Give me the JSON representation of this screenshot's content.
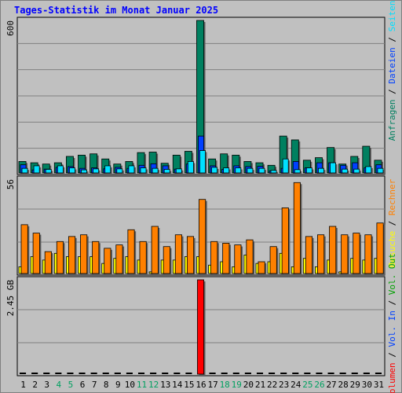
{
  "title": "Tages-Statistik im Monat Januar 2025",
  "colors": {
    "anfragen": "#008060",
    "dateien": "#0040ff",
    "seiten": "#00e0ff",
    "besuche": "#ffff00",
    "rechner": "#ff8000",
    "volumen": "#ff0000",
    "vol_in": "#0040ff",
    "vol_out": "#00a000"
  },
  "right_labels": {
    "top": [
      {
        "text": "Anfragen",
        "color": "#008060"
      },
      {
        "text": "Dateien",
        "color": "#0040ff"
      },
      {
        "text": "Seiten",
        "color": "#00e0ff"
      }
    ],
    "middle": [
      {
        "text": "Besuche",
        "color": "#ffff00"
      },
      {
        "text": "Rechner",
        "color": "#ff8000"
      }
    ],
    "bottom": [
      {
        "text": "Volumen",
        "color": "#ff0000"
      },
      {
        "text": "Vol. In",
        "color": "#0040ff"
      },
      {
        "text": "Vol. Out",
        "color": "#00a000"
      }
    ]
  },
  "chart_data": {
    "type": "bar",
    "categories": [
      "1",
      "2",
      "3",
      "4",
      "5",
      "6",
      "7",
      "8",
      "9",
      "10",
      "11",
      "12",
      "13",
      "14",
      "15",
      "16",
      "17",
      "18",
      "19",
      "20",
      "21",
      "22",
      "23",
      "24",
      "25",
      "26",
      "27",
      "28",
      "29",
      "30",
      "31"
    ],
    "weekend_days": [
      "4",
      "5",
      "11",
      "12",
      "18",
      "19",
      "25",
      "26"
    ],
    "panels": [
      {
        "max_label": "600",
        "ylim": [
          0,
          600
        ],
        "series": [
          {
            "name": "Anfragen",
            "values": [
              45,
              40,
              35,
              40,
              65,
              70,
              75,
              55,
              35,
              45,
              80,
              82,
              38,
              70,
              85,
              600,
              55,
              75,
              70,
              45,
              40,
              30,
              145,
              130,
              50,
              60,
              100,
              35,
              65,
              105,
              50
            ]
          },
          {
            "name": "Dateien",
            "values": [
              32,
              12,
              15,
              22,
              25,
              18,
              20,
              16,
              22,
              18,
              30,
              36,
              28,
              15,
              35,
              145,
              28,
              14,
              28,
              25,
              26,
              8,
              18,
              45,
              20,
              40,
              40,
              30,
              40,
              20,
              32
            ]
          },
          {
            "name": "Seiten",
            "values": [
              18,
              28,
              14,
              28,
              20,
              12,
              16,
              28,
              16,
              28,
              20,
              18,
              14,
              16,
              45,
              88,
              22,
              20,
              20,
              18,
              18,
              10,
              55,
              13,
              20,
              18,
              40,
              15,
              15,
              25,
              18
            ]
          }
        ]
      },
      {
        "max_label": "56",
        "ylim": [
          0,
          56
        ],
        "series": [
          {
            "name": "Besuche",
            "values": [
              4,
              10,
              8,
              12,
              10,
              10,
              10,
              6,
              9,
              10,
              8,
              1,
              8,
              8,
              10,
              10,
              5,
              7,
              4,
              11,
              6,
              7,
              12,
              4,
              9,
              4,
              8,
              1,
              9,
              8,
              9
            ]
          },
          {
            "name": "Rechner",
            "values": [
              29,
              24,
              13,
              19,
              22,
              23,
              19,
              15,
              17,
              26,
              19,
              28,
              16,
              23,
              22,
              44,
              19,
              18,
              17,
              20,
              7,
              16,
              39,
              54,
              22,
              23,
              28,
              23,
              24,
              23,
              30
            ]
          }
        ]
      },
      {
        "max_label": "2.45 GB",
        "ylim": [
          0,
          2.45
        ],
        "series": [
          {
            "name": "Volumen",
            "values": [
              0,
              0,
              0,
              0,
              0,
              0,
              0,
              0,
              0,
              0,
              0,
              0,
              0,
              0,
              0,
              2.45,
              0,
              0,
              0,
              0,
              0,
              0,
              0,
              0,
              0,
              0,
              0,
              0,
              0,
              0,
              0
            ]
          }
        ]
      }
    ]
  }
}
